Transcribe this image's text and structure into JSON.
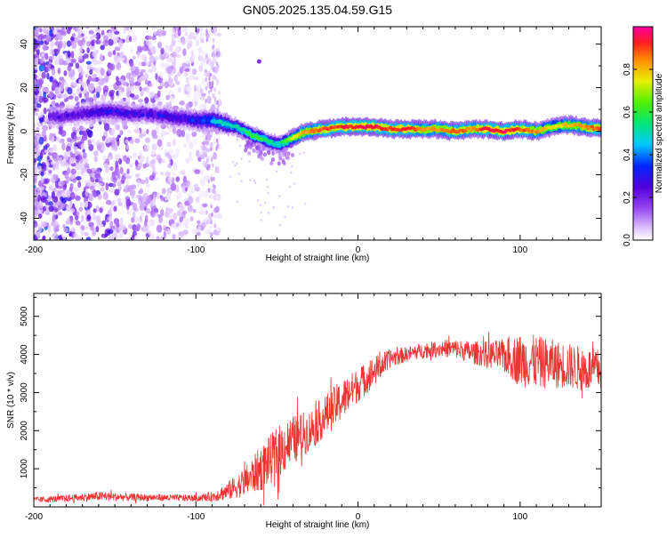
{
  "title": "GN05.2025.135.04.59.G15",
  "chart_data": [
    {
      "type": "heatmap",
      "title": "GN05.2025.135.04.59.G15",
      "xlabel": "Height of straight line (km)",
      "ylabel": "Frequency (Hz)",
      "xlim": [
        -200,
        150
      ],
      "ylim": [
        -50,
        48
      ],
      "x_ticks": [
        -200,
        -100,
        0,
        100
      ],
      "x_tick_labels": [
        "-200",
        "-100",
        "0",
        "100"
      ],
      "y_ticks": [
        -40,
        -20,
        0,
        20,
        40
      ],
      "y_tick_labels": [
        "-40",
        "-20",
        "0",
        "20",
        "40"
      ],
      "colorbar": {
        "label": "Normalized spectral amplitude",
        "range": [
          0,
          1
        ],
        "ticks": [
          0,
          0.2,
          0.4,
          0.6,
          0.8
        ],
        "tick_labels": [
          "0.0",
          "0.2",
          "0.4",
          "0.6",
          "0.8"
        ],
        "colormap": "rainbow (white-violet-blue-cyan-green-yellow-red-magenta)"
      },
      "ridge": {
        "x": [
          -195,
          -180,
          -170,
          -160,
          -150,
          -140,
          -130,
          -120,
          -110,
          -100,
          -90,
          -85,
          -80,
          -75,
          -70,
          -65,
          -60,
          -55,
          -50,
          -45,
          -40,
          -35,
          -30,
          -20,
          -10,
          0,
          10,
          20,
          30,
          40,
          50,
          60,
          70,
          80,
          90,
          100,
          110,
          120,
          130,
          140,
          150
        ],
        "frequency": [
          6,
          7,
          8,
          9,
          9,
          8,
          8,
          7,
          6,
          5,
          5,
          4,
          3,
          2,
          0,
          -2,
          -3,
          -5,
          -6,
          -5,
          -3,
          -1,
          0,
          1,
          2,
          2,
          2,
          1,
          1,
          1,
          1,
          0,
          1,
          1,
          0,
          1,
          0,
          2,
          3,
          2,
          1
        ],
        "amplitude": [
          0.2,
          0.25,
          0.25,
          0.3,
          0.3,
          0.28,
          0.28,
          0.3,
          0.3,
          0.35,
          0.45,
          0.5,
          0.5,
          0.5,
          0.55,
          0.6,
          0.6,
          0.55,
          0.5,
          0.6,
          0.75,
          0.8,
          0.85,
          0.9,
          0.92,
          0.95,
          0.95,
          0.9,
          0.95,
          0.85,
          0.85,
          0.9,
          0.85,
          0.95,
          0.95,
          0.9,
          0.85,
          0.75,
          0.8,
          0.85,
          0.9
        ]
      }
    },
    {
      "type": "line",
      "xlabel": "Height of straight line (km)",
      "ylabel": "SNR (10 * v/v)",
      "xlim": [
        -200,
        150
      ],
      "ylim": [
        0,
        5600
      ],
      "x_ticks": [
        -200,
        -100,
        0,
        100
      ],
      "x_tick_labels": [
        "-200",
        "-100",
        "0",
        "100"
      ],
      "y_ticks": [
        1000,
        2000,
        3000,
        4000,
        5000
      ],
      "y_tick_labels": [
        "1000",
        "2000",
        "3000",
        "4000",
        "5000"
      ],
      "series": [
        {
          "color": "#ee3333",
          "x": [
            -200,
            -180,
            -160,
            -140,
            -120,
            -100,
            -90,
            -80,
            -70,
            -60,
            -50,
            -45,
            -40,
            -30,
            -20,
            -10,
            0,
            10,
            20,
            30,
            40,
            50,
            60,
            70,
            80,
            90,
            100,
            110,
            120,
            130,
            140,
            150
          ],
          "mean": [
            180,
            220,
            280,
            250,
            240,
            230,
            270,
            420,
            650,
            1000,
            1400,
            1600,
            1750,
            2000,
            2400,
            2800,
            3200,
            3550,
            3900,
            4000,
            4100,
            4150,
            4150,
            4050,
            4000,
            3950,
            3850,
            3800,
            3750,
            3700,
            3600,
            3600
          ],
          "spread": [
            80,
            90,
            120,
            100,
            90,
            90,
            130,
            250,
            380,
            600,
            700,
            700,
            650,
            550,
            550,
            550,
            450,
            400,
            250,
            200,
            200,
            220,
            250,
            300,
            350,
            450,
            700,
            700,
            650,
            600,
            600,
            550
          ]
        }
      ]
    }
  ]
}
